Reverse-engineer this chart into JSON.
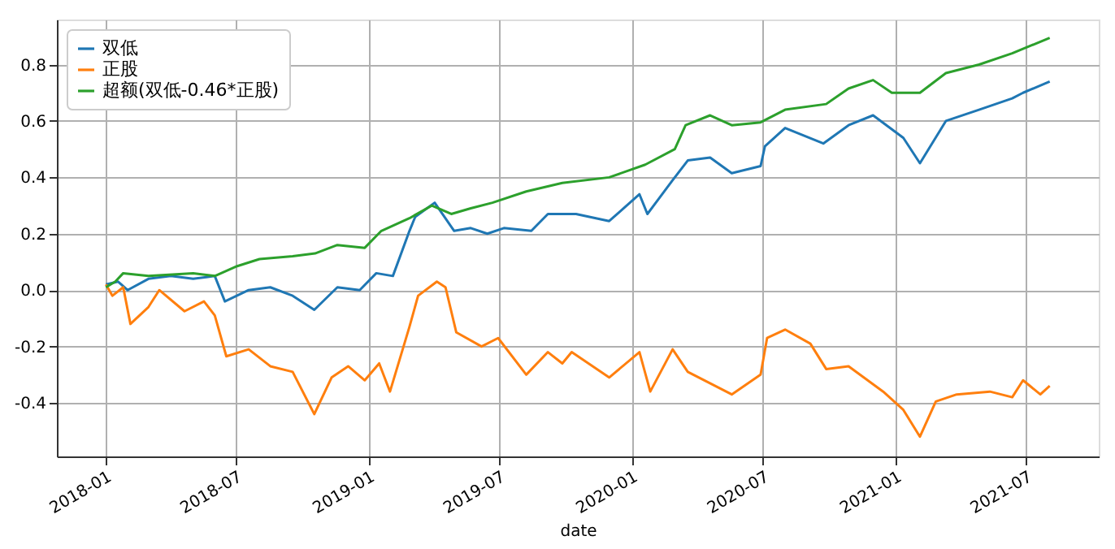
{
  "chart_data": {
    "type": "line",
    "xlabel": "date",
    "xlim": [
      "2017-10-26",
      "2021-10-10"
    ],
    "xticks": [
      "2018-01",
      "2018-07",
      "2019-01",
      "2019-07",
      "2020-01",
      "2020-07",
      "2021-01",
      "2021-07"
    ],
    "ylim": [
      -0.59,
      0.96
    ],
    "yticks": [
      {
        "value": -0.4,
        "label": "-0.4"
      },
      {
        "value": -0.2,
        "label": "-0.2"
      },
      {
        "value": 0,
        "label": "0.0"
      },
      {
        "value": 0.2,
        "label": "0.2"
      },
      {
        "value": 0.4,
        "label": "0.4"
      },
      {
        "value": 0.6,
        "label": "0.6"
      },
      {
        "value": 0.8,
        "label": "0.8"
      }
    ],
    "grid": true,
    "legend": "top left",
    "line_style": "solid",
    "marker": "none",
    "series": [
      {
        "name": "双低",
        "color": "#1f77b4",
        "x": [
          "2018-01-02",
          "2018-01-19",
          "2018-02-01",
          "2018-03-02",
          "2018-04-02",
          "2018-05-03",
          "2018-06-02",
          "2018-06-16",
          "2018-07-19",
          "2018-08-18",
          "2018-09-18",
          "2018-10-18",
          "2018-11-19",
          "2018-12-20",
          "2019-01-12",
          "2019-02-04",
          "2019-02-27",
          "2019-03-07",
          "2019-04-03",
          "2019-04-30",
          "2019-05-23",
          "2019-06-15",
          "2019-07-08",
          "2019-08-15",
          "2019-09-07",
          "2019-10-16",
          "2019-12-01",
          "2020-01-12",
          "2020-01-23",
          "2020-02-27",
          "2020-03-19",
          "2020-04-19",
          "2020-05-19",
          "2020-06-28",
          "2020-07-04",
          "2020-08-01",
          "2020-09-23",
          "2020-10-28",
          "2020-12-01",
          "2021-01-12",
          "2021-02-04",
          "2021-03-12",
          "2021-04-27",
          "2021-06-12",
          "2021-06-27",
          "2021-08-03"
        ],
        "values": [
          0.02,
          0.03,
          0.0,
          0.04,
          0.05,
          0.04,
          0.05,
          -0.04,
          0.0,
          0.01,
          -0.02,
          -0.07,
          0.01,
          0.0,
          0.06,
          0.05,
          0.21,
          0.26,
          0.31,
          0.21,
          0.22,
          0.2,
          0.22,
          0.21,
          0.27,
          0.27,
          0.245,
          0.34,
          0.27,
          0.39,
          0.46,
          0.47,
          0.415,
          0.44,
          0.51,
          0.575,
          0.52,
          0.585,
          0.62,
          0.54,
          0.45,
          0.6,
          0.64,
          0.68,
          0.7,
          0.74
        ]
      },
      {
        "name": "正股",
        "color": "#ff7f0e",
        "x": [
          "2018-01-02",
          "2018-01-11",
          "2018-01-26",
          "2018-02-05",
          "2018-03-02",
          "2018-03-17",
          "2018-04-21",
          "2018-05-18",
          "2018-06-02",
          "2018-06-18",
          "2018-07-19",
          "2018-08-18",
          "2018-09-18",
          "2018-10-18",
          "2018-11-11",
          "2018-12-04",
          "2018-12-27",
          "2019-01-16",
          "2019-01-31",
          "2019-02-27",
          "2019-03-11",
          "2019-04-06",
          "2019-04-18",
          "2019-05-03",
          "2019-06-07",
          "2019-06-30",
          "2019-08-08",
          "2019-09-07",
          "2019-09-27",
          "2019-10-10",
          "2019-12-01",
          "2020-01-12",
          "2020-01-27",
          "2020-02-27",
          "2020-03-19",
          "2020-05-19",
          "2020-06-28",
          "2020-07-07",
          "2020-08-01",
          "2020-09-05",
          "2020-09-27",
          "2020-10-28",
          "2020-12-15",
          "2021-01-12",
          "2021-02-04",
          "2021-02-26",
          "2021-03-27",
          "2021-05-12",
          "2021-06-12",
          "2021-06-27",
          "2021-07-21",
          "2021-08-03"
        ],
        "values": [
          0.02,
          -0.02,
          0.01,
          -0.12,
          -0.06,
          0.0,
          -0.075,
          -0.04,
          -0.09,
          -0.235,
          -0.21,
          -0.27,
          -0.29,
          -0.44,
          -0.31,
          -0.27,
          -0.32,
          -0.26,
          -0.36,
          -0.13,
          -0.02,
          0.03,
          0.01,
          -0.15,
          -0.2,
          -0.17,
          -0.3,
          -0.22,
          -0.26,
          -0.22,
          -0.31,
          -0.22,
          -0.36,
          -0.21,
          -0.29,
          -0.37,
          -0.3,
          -0.17,
          -0.14,
          -0.19,
          -0.28,
          -0.27,
          -0.36,
          -0.425,
          -0.52,
          -0.395,
          -0.37,
          -0.36,
          -0.38,
          -0.32,
          -0.37,
          -0.34
        ]
      },
      {
        "name": "超额(双低-0.46*正股)",
        "color": "#2ca02c",
        "x": [
          "2018-01-02",
          "2018-01-15",
          "2018-01-26",
          "2018-03-02",
          "2018-05-03",
          "2018-06-02",
          "2018-07-03",
          "2018-08-03",
          "2018-09-18",
          "2018-10-19",
          "2018-11-19",
          "2018-12-27",
          "2019-01-19",
          "2019-02-27",
          "2019-03-30",
          "2019-04-26",
          "2019-05-23",
          "2019-06-22",
          "2019-08-08",
          "2019-09-27",
          "2019-12-01",
          "2020-01-20",
          "2020-03-01",
          "2020-03-16",
          "2020-04-19",
          "2020-05-19",
          "2020-06-28",
          "2020-08-01",
          "2020-09-27",
          "2020-10-28",
          "2020-12-01",
          "2020-12-27",
          "2021-02-04",
          "2021-03-12",
          "2021-04-27",
          "2021-06-12",
          "2021-08-03"
        ],
        "values": [
          0.01,
          0.03,
          0.06,
          0.05,
          0.06,
          0.05,
          0.085,
          0.11,
          0.12,
          0.13,
          0.16,
          0.15,
          0.21,
          0.255,
          0.3,
          0.27,
          0.29,
          0.31,
          0.35,
          0.38,
          0.4,
          0.445,
          0.5,
          0.585,
          0.62,
          0.585,
          0.595,
          0.64,
          0.66,
          0.715,
          0.745,
          0.7,
          0.7,
          0.77,
          0.8,
          0.84,
          0.895
        ]
      }
    ]
  }
}
